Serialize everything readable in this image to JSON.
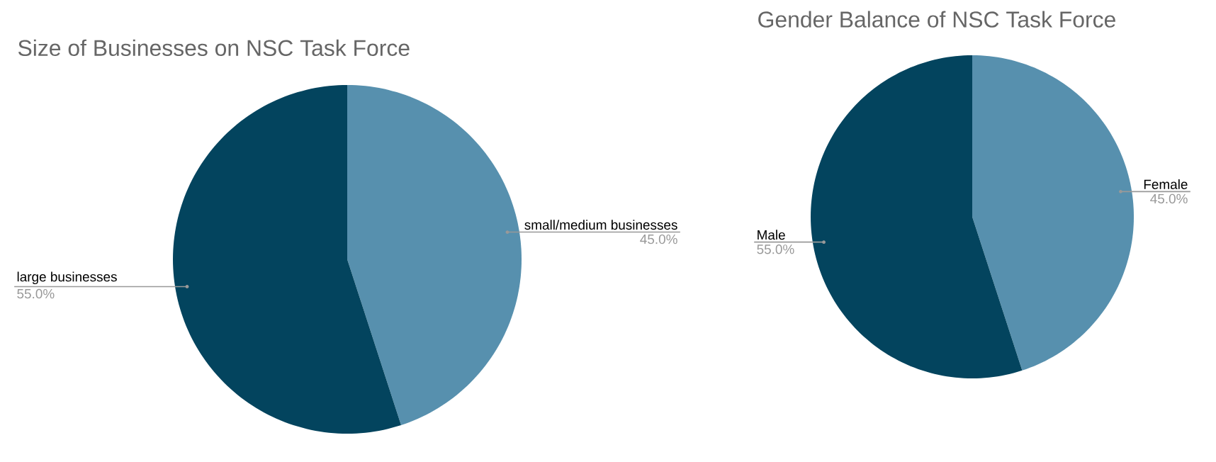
{
  "chart_data": [
    {
      "type": "pie",
      "title": "Size of Businesses on NSC Task Force",
      "categories": [
        "small/medium businesses",
        "large businesses"
      ],
      "values": [
        45.0,
        55.0
      ],
      "colors": [
        "#5790ae",
        "#03445e"
      ],
      "value_labels": [
        "45.0%",
        "55.0%"
      ]
    },
    {
      "type": "pie",
      "title": "Gender Balance of NSC Task Force",
      "categories": [
        "Female",
        "Male"
      ],
      "values": [
        45.0,
        55.0
      ],
      "colors": [
        "#5790ae",
        "#03445e"
      ],
      "value_labels": [
        "45.0%",
        "55.0%"
      ]
    }
  ]
}
